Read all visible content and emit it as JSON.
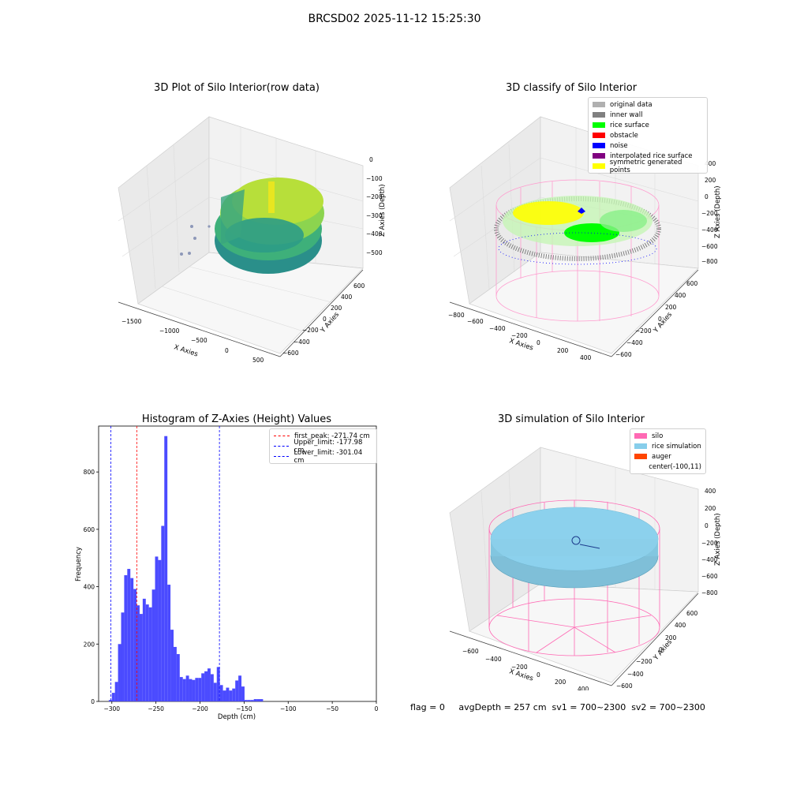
{
  "figure_title": "BRCSD02 2025-11-12 15:25:30",
  "panels": {
    "raw": {
      "title": "3D Plot of Silo Interior(row data)",
      "xlabel": "X Axies",
      "ylabel": "Y Axies",
      "zlabel": "Z Axies (Depth)",
      "xticks": [
        "−1500",
        "−1000",
        "−500",
        "0",
        "500"
      ],
      "yticks": [
        "600",
        "400",
        "200",
        "0",
        "−200",
        "−400",
        "−600"
      ],
      "zticks": [
        "0",
        "−100",
        "−200",
        "−300",
        "−400",
        "−500"
      ]
    },
    "classify": {
      "title": "3D classify of Silo Interior",
      "xlabel": "X Axies",
      "ylabel": "Y Axies",
      "zlabel": "Z Axies (Depth)",
      "xticks": [
        "−800",
        "−600",
        "−400",
        "−200",
        "0",
        "200",
        "400"
      ],
      "yticks": [
        "600",
        "400",
        "200",
        "0",
        "−200",
        "−400",
        "−600"
      ],
      "zticks": [
        "400",
        "200",
        "0",
        "−200",
        "−400",
        "−600",
        "−800"
      ],
      "legend": [
        {
          "label": "original data",
          "color": "#b0b0b0"
        },
        {
          "label": "inner wall",
          "color": "#808080"
        },
        {
          "label": "rice surface",
          "color": "#00ff00"
        },
        {
          "label": "obstacle",
          "color": "#ff0000"
        },
        {
          "label": "noise",
          "color": "#0000ff"
        },
        {
          "label": "interpolated rice surface",
          "color": "#800080"
        },
        {
          "label": "symmetric generated points",
          "color": "#ffff00"
        }
      ]
    },
    "simulation": {
      "title": "3D simulation of Silo Interior",
      "xlabel": "X Axies",
      "ylabel": "Y Axies",
      "zlabel": "Z Axies (Depth)",
      "xticks": [
        "−600",
        "−400",
        "−200",
        "0",
        "200",
        "400"
      ],
      "yticks": [
        "600",
        "400",
        "200",
        "0",
        "−200",
        "−400",
        "−600"
      ],
      "zticks": [
        "400",
        "200",
        "0",
        "−200",
        "−400",
        "−600",
        "−800"
      ],
      "legend": [
        {
          "label": "silo",
          "color": "#ff69b4"
        },
        {
          "label": "rice simulation",
          "color": "#87ceeb"
        },
        {
          "label": "auger",
          "color": "#ff4500"
        },
        {
          "label": "center(-100,11)",
          "color": ""
        }
      ]
    }
  },
  "chart_data": {
    "type": "bar",
    "title": "Histogram of Z-Axies (Height) Values",
    "xlabel": "Depth (cm)",
    "ylabel": "Frequency",
    "xlim": [
      -315,
      0
    ],
    "ylim": [
      0,
      960
    ],
    "xticks": [
      -300,
      -250,
      -200,
      -150,
      -100,
      -50,
      0
    ],
    "yticks": [
      0,
      200,
      400,
      600,
      800
    ],
    "bin_width": 3.5,
    "bins": [
      {
        "x": -303.5,
        "v": 5
      },
      {
        "x": -300,
        "v": 30
      },
      {
        "x": -296.5,
        "v": 68
      },
      {
        "x": -293,
        "v": 200
      },
      {
        "x": -289.5,
        "v": 310
      },
      {
        "x": -286,
        "v": 440
      },
      {
        "x": -282.5,
        "v": 462
      },
      {
        "x": -279,
        "v": 430
      },
      {
        "x": -275.5,
        "v": 392
      },
      {
        "x": -272,
        "v": 335
      },
      {
        "x": -268.5,
        "v": 305
      },
      {
        "x": -265,
        "v": 358
      },
      {
        "x": -261.5,
        "v": 338
      },
      {
        "x": -258,
        "v": 328
      },
      {
        "x": -254.5,
        "v": 390
      },
      {
        "x": -251,
        "v": 505
      },
      {
        "x": -247.5,
        "v": 493
      },
      {
        "x": -244,
        "v": 612
      },
      {
        "x": -240.5,
        "v": 925
      },
      {
        "x": -237,
        "v": 407
      },
      {
        "x": -233.5,
        "v": 250
      },
      {
        "x": -230,
        "v": 190
      },
      {
        "x": -226.5,
        "v": 165
      },
      {
        "x": -223,
        "v": 85
      },
      {
        "x": -219.5,
        "v": 78
      },
      {
        "x": -216,
        "v": 90
      },
      {
        "x": -212.5,
        "v": 78
      },
      {
        "x": -209,
        "v": 75
      },
      {
        "x": -205.5,
        "v": 82
      },
      {
        "x": -202,
        "v": 82
      },
      {
        "x": -198.5,
        "v": 98
      },
      {
        "x": -195,
        "v": 105
      },
      {
        "x": -191.5,
        "v": 115
      },
      {
        "x": -188,
        "v": 95
      },
      {
        "x": -184.5,
        "v": 65
      },
      {
        "x": -181,
        "v": 120
      },
      {
        "x": -177.5,
        "v": 57
      },
      {
        "x": -174,
        "v": 38
      },
      {
        "x": -170.5,
        "v": 48
      },
      {
        "x": -167,
        "v": 38
      },
      {
        "x": -163.5,
        "v": 45
      },
      {
        "x": -160,
        "v": 73
      },
      {
        "x": -156.5,
        "v": 90
      },
      {
        "x": -153,
        "v": 52
      },
      {
        "x": -149.5,
        "v": 5
      },
      {
        "x": -146,
        "v": 5
      },
      {
        "x": -142.5,
        "v": 5
      },
      {
        "x": -139,
        "v": 8
      },
      {
        "x": -135.5,
        "v": 8
      },
      {
        "x": -132,
        "v": 8
      }
    ],
    "vlines": [
      {
        "x": -271.74,
        "color": "#ff0000",
        "label": "first_peak: -271.74 cm"
      },
      {
        "x": -177.98,
        "color": "#0000ff",
        "label": "Upper_limit: -177.98 cm"
      },
      {
        "x": -301.04,
        "color": "#0000ff",
        "label": "Lower_limit: -301.04 cm"
      }
    ],
    "bar_color": "#4b4bff"
  },
  "footer": "flag = 0     avgDepth = 257 cm  sv1 = 700~2300  sv2 = 700~2300"
}
